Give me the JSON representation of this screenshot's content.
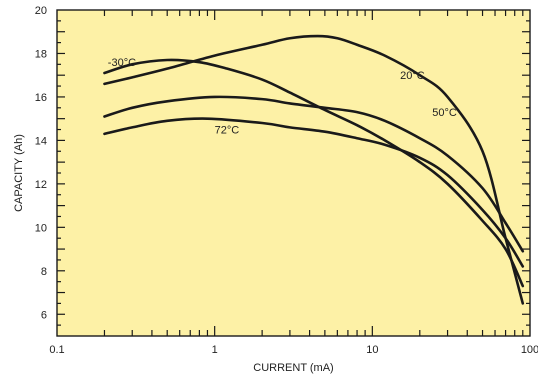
{
  "chart_data": {
    "type": "line",
    "xlabel": "CURRENT (mA)",
    "ylabel": "CAPACITY (Ah)",
    "x_scale": "log",
    "xlim": [
      0.1,
      100
    ],
    "ylim": [
      5,
      20
    ],
    "x_ticks": [
      "0.1",
      "1",
      "10",
      "100"
    ],
    "y_ticks": [
      "6",
      "8",
      "10",
      "12",
      "14",
      "16",
      "18",
      "20"
    ],
    "grid": false,
    "background_color": "#fdf1a6",
    "line_color": "#1a1a1a",
    "series": [
      {
        "name": "-30°C",
        "x": [
          0.2,
          0.3,
          0.5,
          0.8,
          1.2,
          2,
          3,
          5,
          8,
          12,
          20,
          30,
          50,
          70,
          90
        ],
        "y": [
          17.1,
          17.5,
          17.7,
          17.6,
          17.3,
          16.8,
          16.2,
          15.4,
          14.7,
          14.0,
          13.0,
          12.0,
          10.3,
          9.0,
          7.3
        ]
      },
      {
        "name": "20°C",
        "x": [
          0.2,
          0.3,
          0.5,
          1,
          2,
          3,
          4.5,
          6,
          8,
          12,
          20,
          30,
          50,
          70,
          90
        ],
        "y": [
          16.6,
          16.9,
          17.3,
          17.9,
          18.4,
          18.7,
          18.8,
          18.7,
          18.4,
          17.9,
          17.0,
          16.0,
          13.5,
          9.5,
          6.5
        ]
      },
      {
        "name": "50°C",
        "x": [
          0.2,
          0.3,
          0.5,
          1,
          2,
          3,
          5,
          8,
          12,
          20,
          30,
          50,
          70,
          90
        ],
        "y": [
          15.1,
          15.5,
          15.8,
          16.0,
          15.9,
          15.7,
          15.5,
          15.3,
          14.9,
          14.1,
          13.3,
          11.8,
          10.2,
          8.9
        ]
      },
      {
        "name": "72°C",
        "x": [
          0.2,
          0.3,
          0.5,
          0.9,
          2,
          3,
          5,
          8,
          12,
          20,
          30,
          50,
          70,
          90
        ],
        "y": [
          14.3,
          14.6,
          14.9,
          15.0,
          14.8,
          14.6,
          14.4,
          14.1,
          13.8,
          13.2,
          12.4,
          10.8,
          9.5,
          8.2
        ]
      }
    ],
    "labels": [
      {
        "text": "-30°C",
        "x": 0.21,
        "y": 17.6
      },
      {
        "text": "20°C",
        "x": 15,
        "y": 17.0
      },
      {
        "text": "50°C",
        "x": 24,
        "y": 15.3
      },
      {
        "text": "72°C",
        "x": 1.0,
        "y": 14.5
      }
    ]
  }
}
